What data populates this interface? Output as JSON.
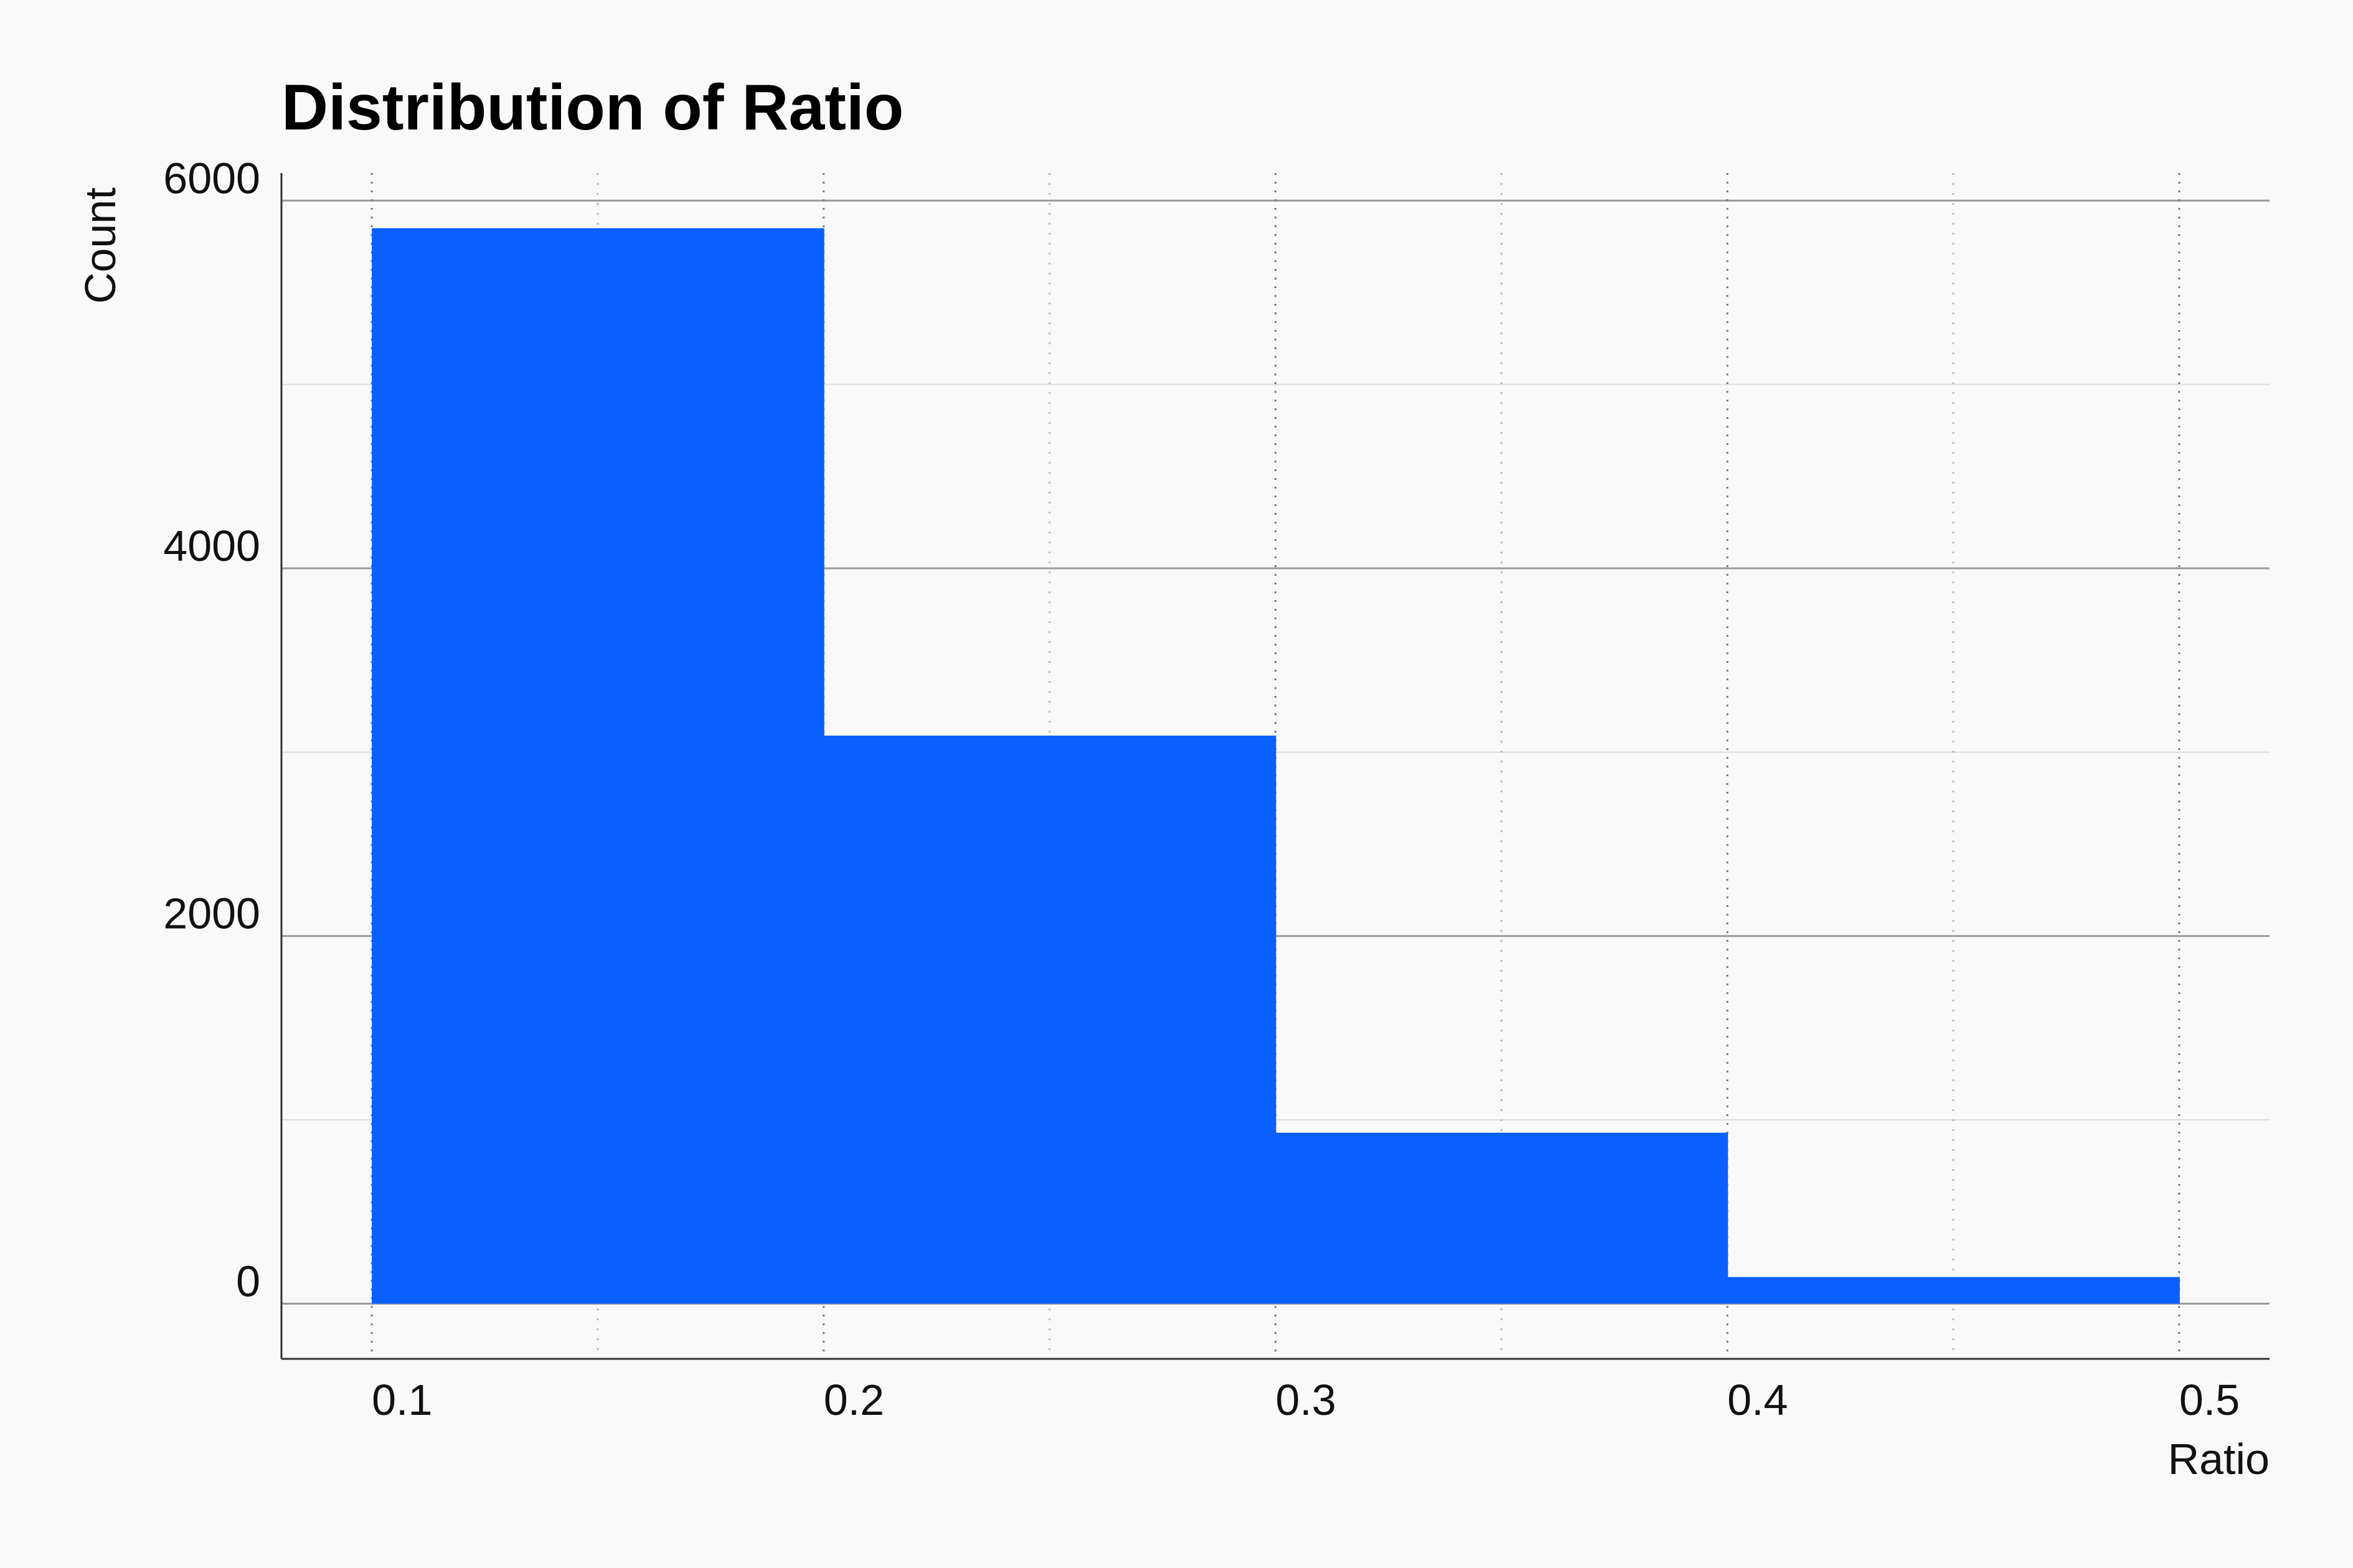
{
  "chart_data": {
    "type": "bar",
    "title": "Distribution of Ratio",
    "xlabel": "Ratio",
    "ylabel": "Count",
    "bins": [
      {
        "start": 0.1,
        "end": 0.2,
        "count": 5850
      },
      {
        "start": 0.2,
        "end": 0.3,
        "count": 3090
      },
      {
        "start": 0.3,
        "end": 0.4,
        "count": 930
      },
      {
        "start": 0.4,
        "end": 0.5,
        "count": 145
      }
    ],
    "x_ticks": [
      "0.1",
      "0.2",
      "0.3",
      "0.4",
      "0.5"
    ],
    "y_ticks": [
      "0",
      "2000",
      "4000",
      "6000"
    ],
    "xlim": [
      0.08,
      0.52
    ],
    "ylim": [
      -300,
      6150
    ],
    "grid": true,
    "bar_color": "#0a5fff",
    "grid_color": "#999999",
    "axis_color": "#333333"
  }
}
